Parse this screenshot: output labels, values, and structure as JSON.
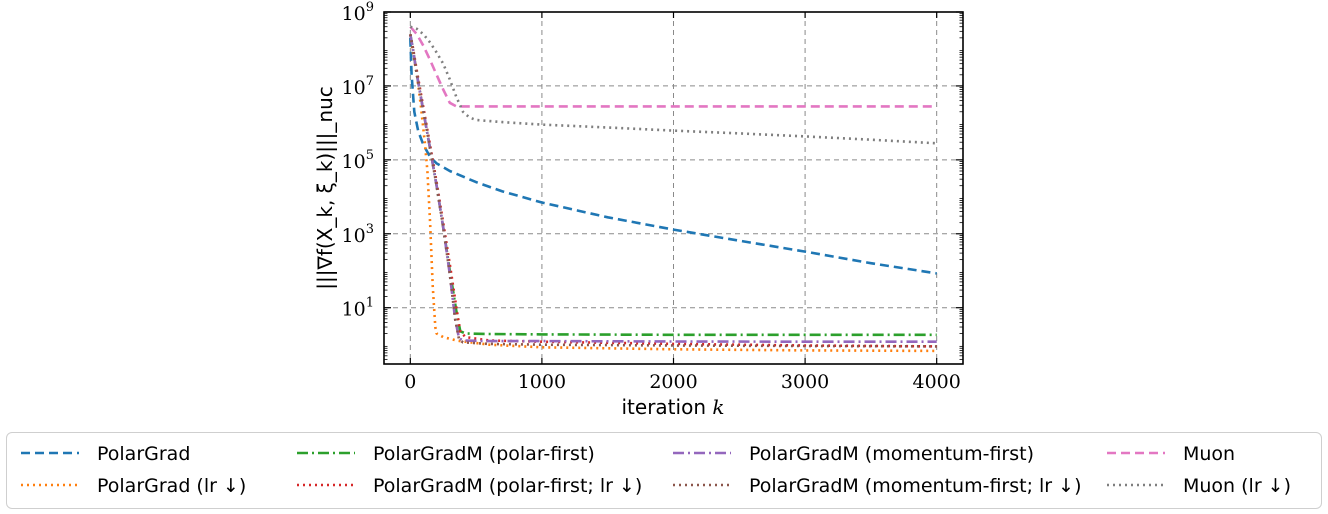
{
  "chart_data": {
    "type": "line",
    "title": "",
    "xlabel": "iteration k",
    "ylabel": "|||∇f(X_k, ξ_k)|||_nuc",
    "xscale": "linear",
    "yscale": "log",
    "xlim": [
      -200,
      4200
    ],
    "ylim": [
      0.3,
      1000000000
    ],
    "xticks": [
      0,
      1000,
      2000,
      3000,
      4000
    ],
    "xtick_labels": [
      "0",
      "1000",
      "2000",
      "3000",
      "4000"
    ],
    "yticks": [
      10,
      1000,
      100000,
      10000000,
      1000000000
    ],
    "ytick_labels": [
      {
        "base": "10",
        "exp": "1"
      },
      {
        "base": "10",
        "exp": "3"
      },
      {
        "base": "10",
        "exp": "5"
      },
      {
        "base": "10",
        "exp": "7"
      },
      {
        "base": "10",
        "exp": "9"
      }
    ],
    "grid": true,
    "legend_position": "bottom",
    "series": [
      {
        "name": "PolarGrad",
        "color": "#1f77b4",
        "dash": "dashed",
        "x": [
          0,
          10,
          30,
          60,
          100,
          150,
          200,
          300,
          500,
          700,
          1000,
          1500,
          2000,
          2500,
          3000,
          3500,
          4000
        ],
        "y": [
          200000000,
          20000000,
          2000000,
          600000,
          250000,
          120000,
          80000,
          50000,
          25000,
          14000,
          7000,
          2800,
          1300,
          650,
          330,
          160,
          85
        ]
      },
      {
        "name": "PolarGrad (lr ↓)",
        "color": "#ff7f0e",
        "dash": "dotted",
        "x": [
          0,
          20,
          50,
          80,
          110,
          130,
          150,
          170,
          190,
          200,
          250,
          350,
          600,
          1000,
          2000,
          3000,
          4000
        ],
        "y": [
          250000000,
          80000000,
          20000000,
          3000000,
          300000,
          50000,
          2000,
          40,
          3,
          2,
          1.6,
          1.3,
          1.0,
          0.85,
          0.75,
          0.7,
          0.68
        ]
      },
      {
        "name": "PolarGradM (polar-first)",
        "color": "#2ca02c",
        "dash": "dashdot",
        "x": [
          0,
          20,
          50,
          100,
          150,
          200,
          250,
          300,
          350,
          380,
          420,
          600,
          1000,
          2000,
          3000,
          4000
        ],
        "y": [
          250000000,
          100000000,
          20000000,
          2000000,
          200000,
          20000,
          1500,
          100,
          8,
          2.3,
          2.0,
          1.95,
          1.9,
          1.85,
          1.85,
          1.85
        ]
      },
      {
        "name": "PolarGradM (polar-first; lr ↓)",
        "color": "#d62728",
        "dash": "dotted",
        "x": [
          0,
          20,
          50,
          100,
          150,
          200,
          250,
          300,
          350,
          380,
          420,
          600,
          1000,
          2000,
          3000,
          4000
        ],
        "y": [
          250000000,
          110000000,
          25000000,
          2500000,
          250000,
          25000,
          2000,
          150,
          10,
          2.2,
          1.6,
          1.3,
          1.2,
          1.05,
          0.95,
          0.9
        ]
      },
      {
        "name": "PolarGradM (momentum-first)",
        "color": "#9467bd",
        "dash": "dashdot",
        "x": [
          0,
          20,
          50,
          100,
          150,
          200,
          250,
          300,
          340,
          370,
          400,
          600,
          1000,
          2000,
          3000,
          4000
        ],
        "y": [
          250000000,
          100000000,
          20000000,
          2000000,
          200000,
          20000,
          1500,
          80,
          5,
          1.5,
          1.3,
          1.25,
          1.25,
          1.22,
          1.2,
          1.2
        ]
      },
      {
        "name": "PolarGradM (momentum-first; lr ↓)",
        "color": "#8c564b",
        "dash": "dotted",
        "x": [
          0,
          20,
          50,
          100,
          150,
          200,
          250,
          300,
          340,
          370,
          400,
          600,
          1000,
          2000,
          3000,
          4000
        ],
        "y": [
          250000000,
          100000000,
          20000000,
          2000000,
          200000,
          20000,
          1500,
          80,
          5,
          1.4,
          1.15,
          1.05,
          1.0,
          0.95,
          0.92,
          0.9
        ]
      },
      {
        "name": "Muon",
        "color": "#e377c2",
        "dash": "dashed",
        "x": [
          0,
          50,
          100,
          150,
          200,
          250,
          300,
          350,
          400,
          500,
          1000,
          2000,
          3000,
          4000
        ],
        "y": [
          400000000,
          250000000,
          120000000,
          50000000,
          20000000,
          8000000,
          3500000,
          2800000,
          2800000,
          2800000,
          2800000,
          2800000,
          2800000,
          2800000
        ]
      },
      {
        "name": "Muon (lr ↓)",
        "color": "#7f7f7f",
        "dash": "dotted",
        "x": [
          0,
          50,
          100,
          150,
          200,
          250,
          300,
          350,
          400,
          450,
          500,
          700,
          1000,
          1500,
          2000,
          2500,
          3000,
          3500,
          4000
        ],
        "y": [
          400000000,
          350000000,
          250000000,
          150000000,
          80000000,
          40000000,
          15000000,
          5000000,
          2000000,
          1400000,
          1200000,
          1050000,
          900000,
          750000,
          620000,
          520000,
          430000,
          350000,
          280000
        ]
      }
    ]
  }
}
